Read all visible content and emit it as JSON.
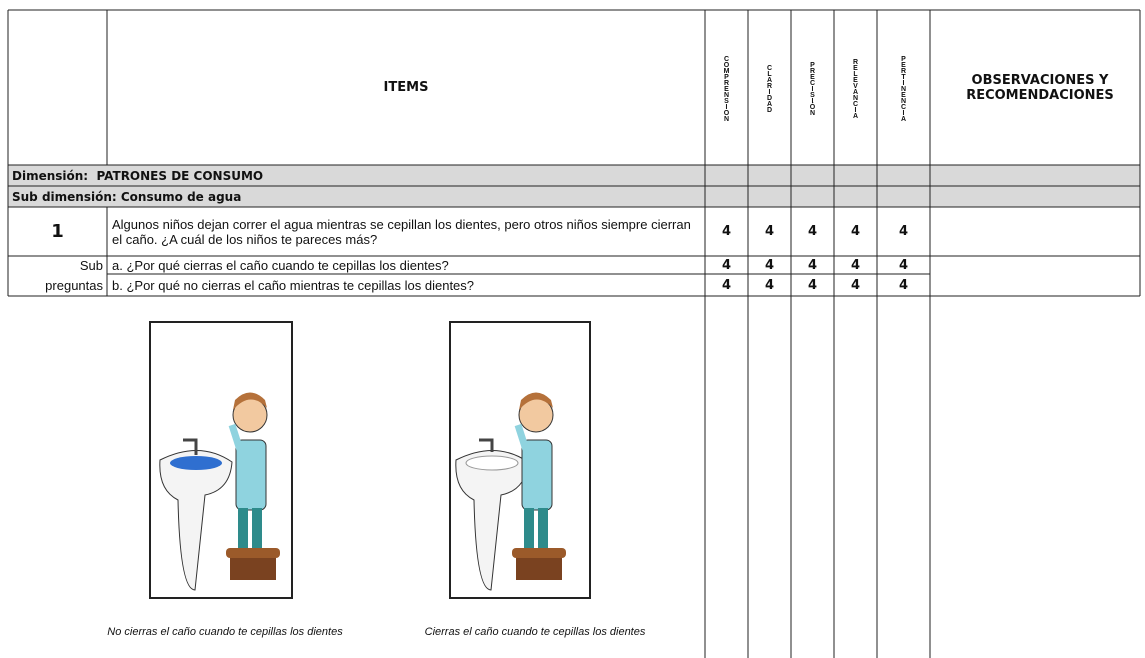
{
  "header": {
    "items": "ITEMS",
    "criteria": [
      "COMPRENSION",
      "CLARIDAD",
      "PRECISIÓN",
      "RELEVANCIA",
      "PERTINENCIA"
    ],
    "observations": "OBSERVACIONES Y RECOMENDACIONES"
  },
  "dimension": "Dimensión:  PATRONES DE CONSUMO",
  "sub_dimension": "Sub dimensión: Consumo de agua",
  "item": {
    "number": 1,
    "text": "Algunos niños dejan correr el agua mientras se cepillan los dientes, pero otros niños siempre cierran el caño. ¿A cuál de los niños te pareces más?",
    "ratings": [
      4,
      4,
      4,
      4,
      4
    ]
  },
  "sub_questions": {
    "label": [
      "Sub",
      "preguntas"
    ],
    "questions": [
      {
        "text": "a. ¿Por qué cierras el caño cuando te cepillas los dientes?",
        "ratings": [
          4,
          4,
          4,
          4,
          4
        ]
      },
      {
        "text": "b. ¿Por qué no cierras el caño mientras te cepillas los dientes?",
        "ratings": [
          4,
          4,
          4,
          4,
          4
        ]
      }
    ]
  },
  "images": [
    {
      "caption": "No cierras el caño cuando te cepillas los dientes"
    },
    {
      "caption": "Cierras el caño cuando te cepillas los dientes"
    }
  ]
}
